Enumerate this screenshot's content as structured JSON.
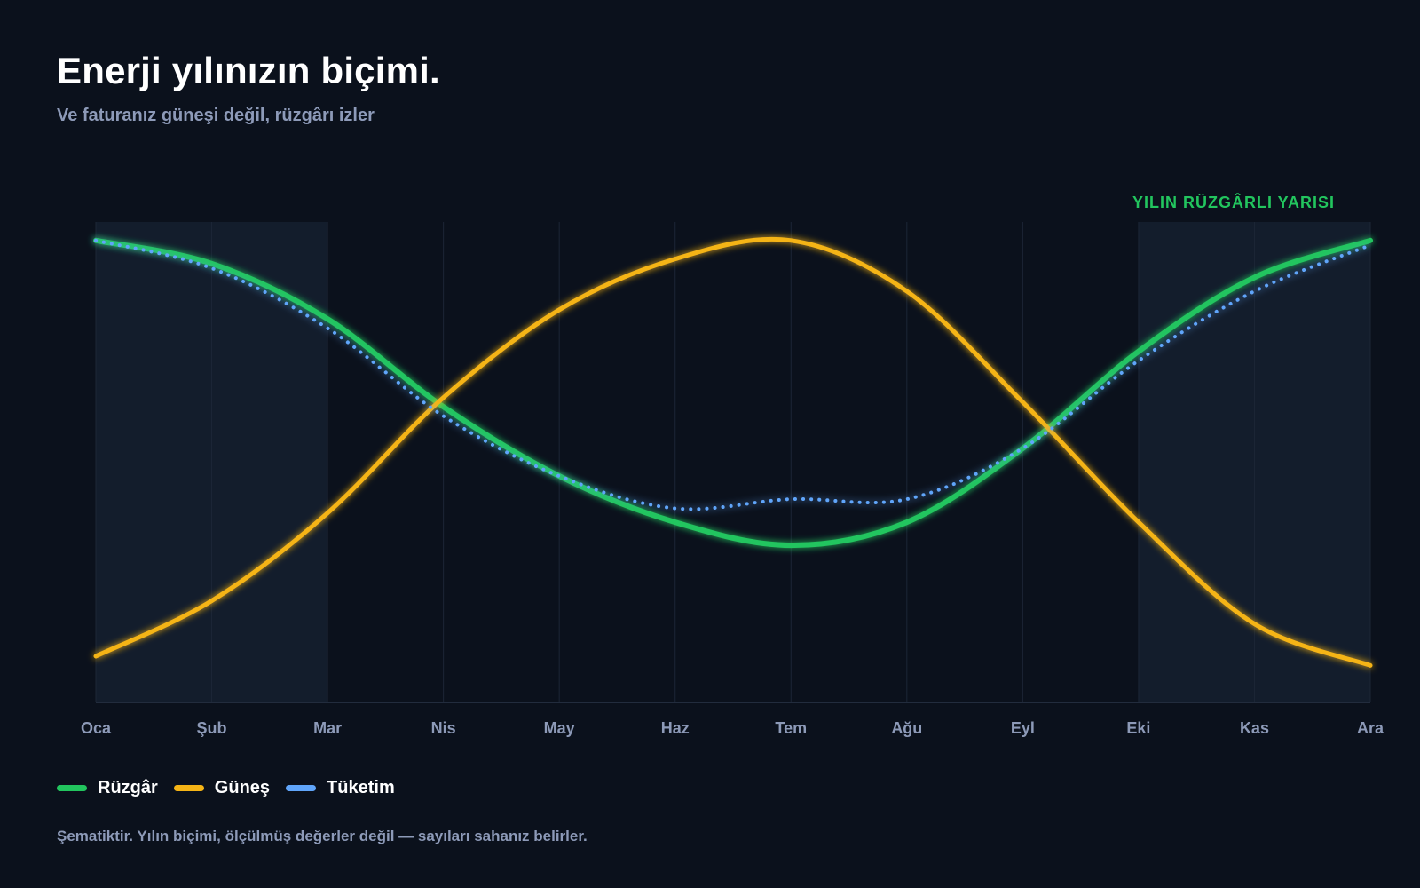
{
  "header": {
    "title": "Enerji yılınızın biçimi.",
    "subtitle": "Ve faturanız güneşi değil, rüzgârı izler"
  },
  "annotation": {
    "label": "YILIN RÜZGÂRLI YARISI"
  },
  "footnote": "Şematiktir. Yılın biçimi, ölçülmüş değerler değil — sayıları sahanız belirler.",
  "colors": {
    "background": "#0b111c",
    "wind": "#22c55e",
    "solar": "#f5b416",
    "consumption": "#60a5fa",
    "band": "#131d2c",
    "grid": "#1c2636",
    "axis_text": "#8d9ab8"
  },
  "chart_data": {
    "type": "line",
    "categories": [
      "Oca",
      "Şub",
      "Mar",
      "Nis",
      "May",
      "Haz",
      "Tem",
      "Ağu",
      "Eyl",
      "Eki",
      "Kas",
      "Ara"
    ],
    "series": [
      {
        "name": "Rüzgâr",
        "color": "#22c55e",
        "style": "solid",
        "values": [
          100,
          95,
          83,
          64,
          49,
          39,
          34,
          39,
          55,
          76,
          92,
          100
        ]
      },
      {
        "name": "Güneş",
        "color": "#f5b416",
        "style": "solid",
        "values": [
          10,
          22,
          41,
          66,
          85,
          96,
          100,
          89,
          65,
          39,
          17,
          8
        ]
      },
      {
        "name": "Tüketim",
        "color": "#60a5fa",
        "style": "dotted",
        "values": [
          100,
          94,
          81,
          62,
          49,
          42,
          44,
          44,
          55,
          74,
          89,
          99
        ]
      }
    ],
    "ylim": [
      0,
      104
    ],
    "grid": "vertical",
    "shaded_ranges": [
      {
        "from": "Oca",
        "to": "Mar"
      },
      {
        "from": "Eki",
        "to": "Ara"
      }
    ],
    "legend_position": "bottom-left"
  }
}
